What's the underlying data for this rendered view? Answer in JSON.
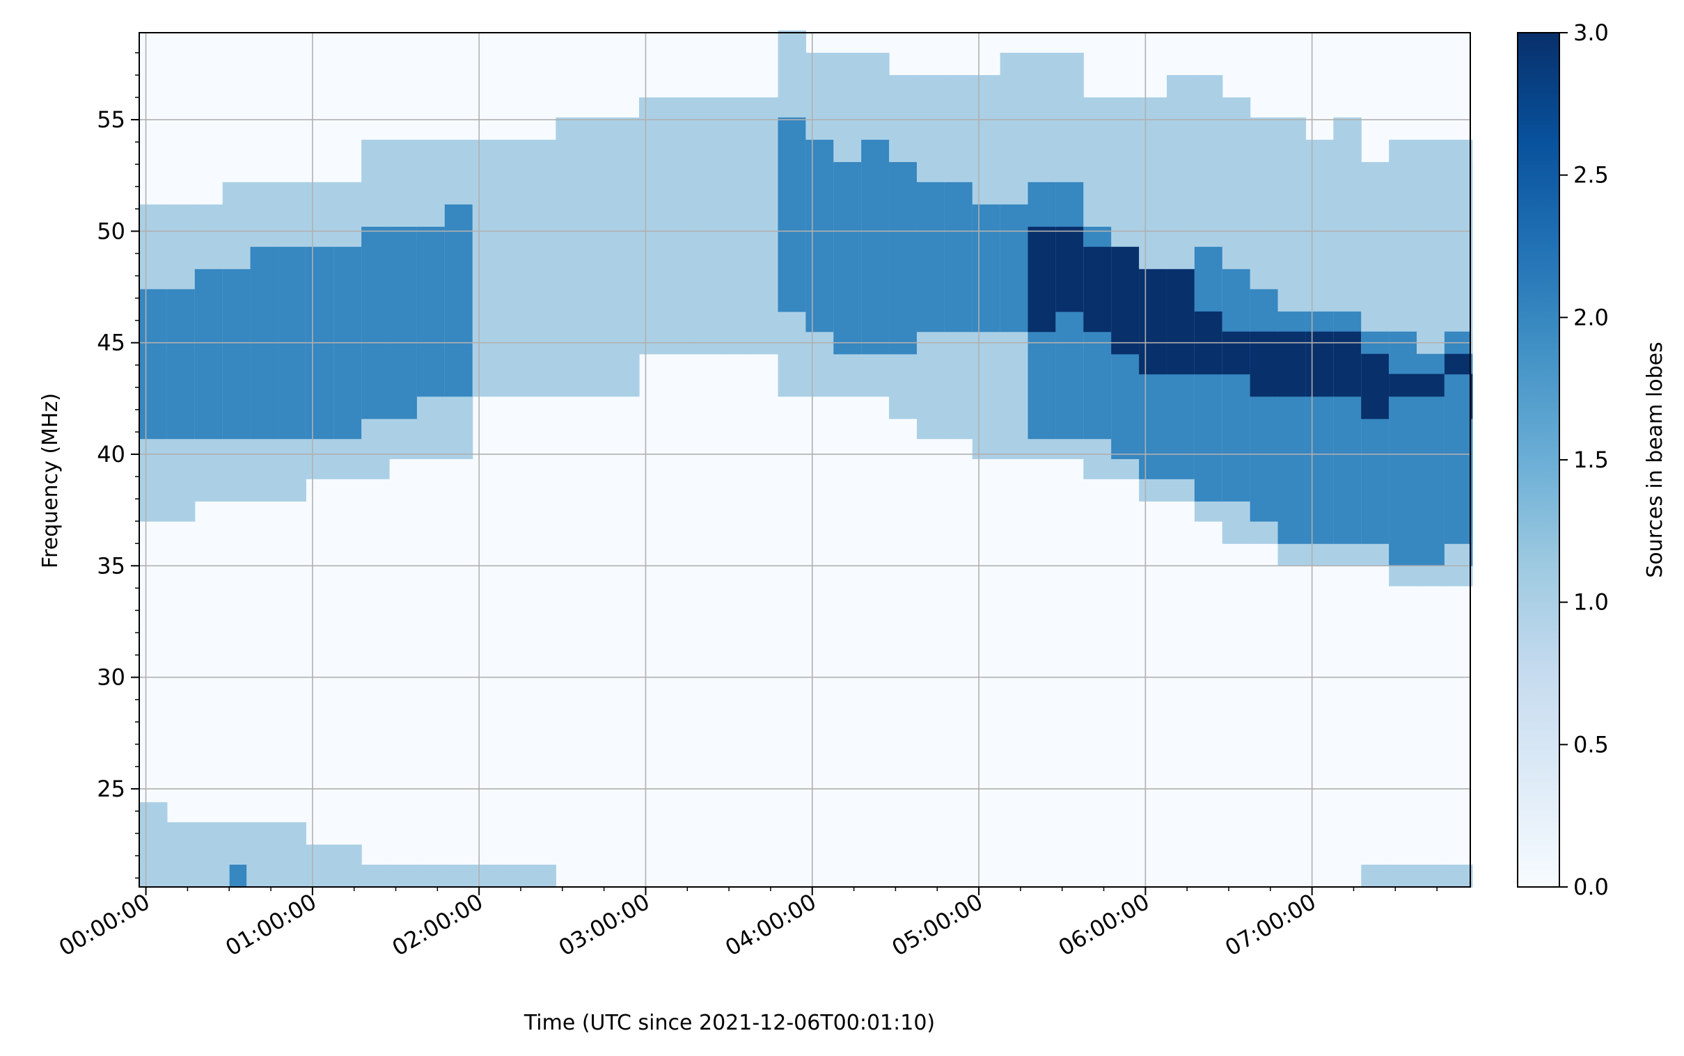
{
  "chart_data": {
    "type": "heatmap",
    "xlabel": "Time (UTC since 2021-12-06T00:01:10)",
    "ylabel": "Frequency (MHz)",
    "colorbar_label": "Sources in beam lobes",
    "colormap": "Blues",
    "colormap_stops": [
      "#f7fbff",
      "#deebf7",
      "#c6dbef",
      "#9ecae1",
      "#6baed6",
      "#4292c6",
      "#2171b5",
      "#08519c",
      "#08306b"
    ],
    "value_range": [
      0,
      3
    ],
    "x_ticks": [
      "00:00:00",
      "01:00:00",
      "02:00:00",
      "03:00:00",
      "04:00:00",
      "05:00:00",
      "06:00:00",
      "07:00:00"
    ],
    "y_ticks": [
      25,
      30,
      35,
      40,
      45,
      50,
      55
    ],
    "colorbar_ticks": [
      "0.0",
      "0.5",
      "1.0",
      "1.5",
      "2.0",
      "2.5",
      "3.0"
    ],
    "grid": true,
    "x_range_hours": [
      -0.04,
      7.95
    ],
    "y_range_mhz": [
      20.6,
      58.9
    ],
    "time_bin_hours": 0.1667,
    "freq_bin_mhz": 0.95,
    "profiles_comment": "Each profile lists the frequency (MHz) where a value band begins for a range of time bins (inclusive). Value 1 spans f1 to top of data, 2 from f2 to t2, 3 from f3 to t3 (MHz).",
    "upper_region": [
      {
        "bins": [
          0,
          1
        ],
        "v1": [
          37.0,
          51.2
        ],
        "v2": [
          40.7,
          47.4
        ]
      },
      {
        "bins": [
          2,
          2
        ],
        "v1": [
          37.9,
          51.2
        ],
        "v2": [
          40.7,
          48.3
        ]
      },
      {
        "bins": [
          3,
          3
        ],
        "v1": [
          37.9,
          52.2
        ],
        "v2": [
          40.7,
          48.3
        ]
      },
      {
        "bins": [
          4,
          5
        ],
        "v1": [
          37.9,
          52.2
        ],
        "v2": [
          40.7,
          49.3
        ]
      },
      {
        "bins": [
          6,
          7
        ],
        "v1": [
          38.9,
          52.2
        ],
        "v2": [
          40.7,
          49.3
        ]
      },
      {
        "bins": [
          8,
          8
        ],
        "v1": [
          38.9,
          54.1
        ],
        "v2": [
          41.6,
          50.2
        ]
      },
      {
        "bins": [
          9,
          9
        ],
        "v1": [
          39.8,
          54.1
        ],
        "v2": [
          41.6,
          50.2
        ]
      },
      {
        "bins": [
          10,
          10
        ],
        "v1": [
          39.8,
          54.1
        ],
        "v2": [
          42.6,
          50.2
        ]
      },
      {
        "bins": [
          11,
          11
        ],
        "v1": [
          39.8,
          54.1
        ],
        "v2": [
          42.6,
          51.2
        ]
      },
      {
        "bins": [
          12,
          14
        ],
        "v1": [
          42.6,
          54.1
        ]
      },
      {
        "bins": [
          15,
          17
        ],
        "v1": [
          42.6,
          55.1
        ]
      },
      {
        "bins": [
          18,
          22
        ],
        "v1": [
          44.5,
          56.0
        ]
      },
      {
        "bins": [
          23,
          23
        ],
        "v1": [
          42.6,
          59.0
        ],
        "v2": [
          46.4,
          55.1
        ]
      },
      {
        "bins": [
          24,
          24
        ],
        "v1": [
          42.6,
          58.0
        ],
        "v2": [
          45.5,
          54.1
        ]
      },
      {
        "bins": [
          25,
          25
        ],
        "v1": [
          42.6,
          58.0
        ],
        "v2": [
          44.5,
          53.1
        ]
      },
      {
        "bins": [
          26,
          26
        ],
        "v1": [
          42.6,
          58.0
        ],
        "v2": [
          44.5,
          54.1
        ]
      },
      {
        "bins": [
          27,
          27
        ],
        "v1": [
          41.6,
          57.0
        ],
        "v2": [
          44.5,
          53.1
        ]
      },
      {
        "bins": [
          28,
          29
        ],
        "v1": [
          40.7,
          57.0
        ],
        "v2": [
          45.5,
          52.2
        ]
      },
      {
        "bins": [
          30,
          30
        ],
        "v1": [
          39.8,
          57.0
        ],
        "v2": [
          45.5,
          51.2
        ]
      },
      {
        "bins": [
          31,
          31
        ],
        "v1": [
          39.8,
          58.0
        ],
        "v2": [
          45.5,
          51.2
        ]
      },
      {
        "bins": [
          32,
          32
        ],
        "v1": [
          39.8,
          58.0
        ],
        "v2": [
          40.7,
          52.2
        ],
        "v3": [
          45.5,
          50.2
        ]
      },
      {
        "bins": [
          33,
          33
        ],
        "v1": [
          39.8,
          58.0
        ],
        "v2": [
          40.7,
          52.2
        ],
        "v3": [
          46.4,
          50.2
        ]
      },
      {
        "bins": [
          34,
          34
        ],
        "v1": [
          38.9,
          56.0
        ],
        "v2": [
          40.7,
          50.2
        ],
        "v3": [
          45.5,
          49.3
        ]
      },
      {
        "bins": [
          35,
          35
        ],
        "v1": [
          38.9,
          56.0
        ],
        "v2": [
          39.8,
          49.3
        ],
        "v3": [
          44.5,
          49.3
        ]
      },
      {
        "bins": [
          36,
          36
        ],
        "v1": [
          37.9,
          56.0
        ],
        "v2": [
          38.9,
          48.3
        ],
        "v3": [
          43.6,
          48.3
        ]
      },
      {
        "bins": [
          37,
          37
        ],
        "v1": [
          37.9,
          57.0
        ],
        "v2": [
          38.9,
          48.3
        ],
        "v3": [
          43.6,
          48.3
        ]
      },
      {
        "bins": [
          38,
          38
        ],
        "v1": [
          37.0,
          57.0
        ],
        "v2": [
          37.9,
          49.3
        ],
        "v3": [
          43.6,
          46.4
        ]
      },
      {
        "bins": [
          39,
          39
        ],
        "v1": [
          36.0,
          56.0
        ],
        "v2": [
          37.9,
          48.3
        ],
        "v3": [
          43.6,
          45.5
        ]
      },
      {
        "bins": [
          40,
          40
        ],
        "v1": [
          36.0,
          55.1
        ],
        "v2": [
          37.0,
          47.4
        ],
        "v3": [
          42.6,
          45.5
        ]
      },
      {
        "bins": [
          41,
          41
        ],
        "v1": [
          35.0,
          55.1
        ],
        "v2": [
          36.0,
          46.4
        ],
        "v3": [
          42.6,
          45.5
        ]
      },
      {
        "bins": [
          42,
          42
        ],
        "v1": [
          35.0,
          54.1
        ],
        "v2": [
          36.0,
          46.4
        ],
        "v3": [
          42.6,
          45.5
        ]
      },
      {
        "bins": [
          43,
          43
        ],
        "v1": [
          35.0,
          55.1
        ],
        "v2": [
          36.0,
          46.4
        ],
        "v3": [
          42.6,
          45.5
        ]
      },
      {
        "bins": [
          44,
          44
        ],
        "v1": [
          35.0,
          53.1
        ],
        "v2": [
          36.0,
          45.5
        ],
        "v3": [
          41.6,
          44.5
        ]
      },
      {
        "bins": [
          45,
          45
        ],
        "v1": [
          34.1,
          54.1
        ],
        "v2": [
          35.0,
          45.5
        ],
        "v3": [
          42.6,
          43.6
        ]
      },
      {
        "bins": [
          46,
          46
        ],
        "v1": [
          34.1,
          54.1
        ],
        "v2": [
          35.0,
          44.5
        ],
        "v3": [
          42.6,
          43.6
        ]
      },
      {
        "bins": [
          47,
          47
        ],
        "v1": [
          34.1,
          54.1
        ],
        "v2": [
          36.0,
          45.5
        ],
        "v3": [
          43.6,
          44.5
        ]
      },
      {
        "bins": [
          48,
          48
        ],
        "v1": [
          34.1,
          53.1
        ],
        "v2": [
          35.0,
          44.5
        ],
        "v3": [
          41.6,
          43.6
        ]
      }
    ],
    "lower_region": [
      {
        "bins": [
          0,
          0
        ],
        "v1": [
          20.6,
          24.4
        ]
      },
      {
        "bins": [
          1,
          5
        ],
        "v1": [
          20.6,
          23.5
        ]
      },
      {
        "bins": [
          6,
          7
        ],
        "v1": [
          20.6,
          22.5
        ]
      },
      {
        "bins": [
          8,
          14
        ],
        "v1": [
          20.6,
          21.6
        ]
      },
      {
        "bins": [
          44,
          48
        ],
        "v1": [
          20.6,
          21.6
        ]
      }
    ],
    "lower_spot": {
      "bins": [
        3,
        3
      ],
      "value": 2,
      "range": [
        20.6,
        21.6
      ]
    }
  }
}
